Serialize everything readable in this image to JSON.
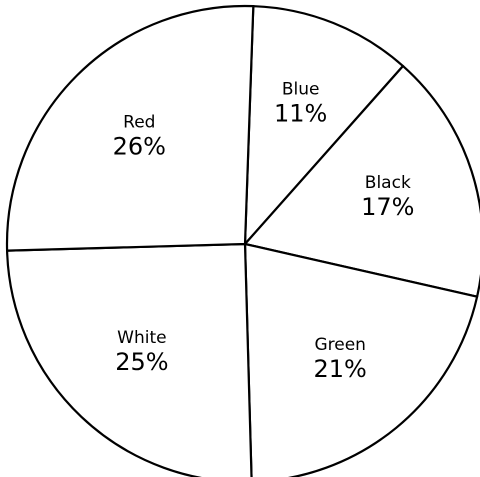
{
  "chart_data": {
    "type": "pie",
    "start_angle_deg": -88,
    "direction": "clockwise",
    "slices": [
      {
        "label": "Blue",
        "value": 11,
        "value_label": "11%"
      },
      {
        "label": "Black",
        "value": 17,
        "value_label": "17%"
      },
      {
        "label": "Green",
        "value": 21,
        "value_label": "21%"
      },
      {
        "label": "White",
        "value": 25,
        "value_label": "25%"
      },
      {
        "label": "Red",
        "value": 26,
        "value_label": "26%"
      }
    ],
    "legend": "none",
    "fill_color": "#ffffff",
    "stroke_color": "#000000"
  }
}
